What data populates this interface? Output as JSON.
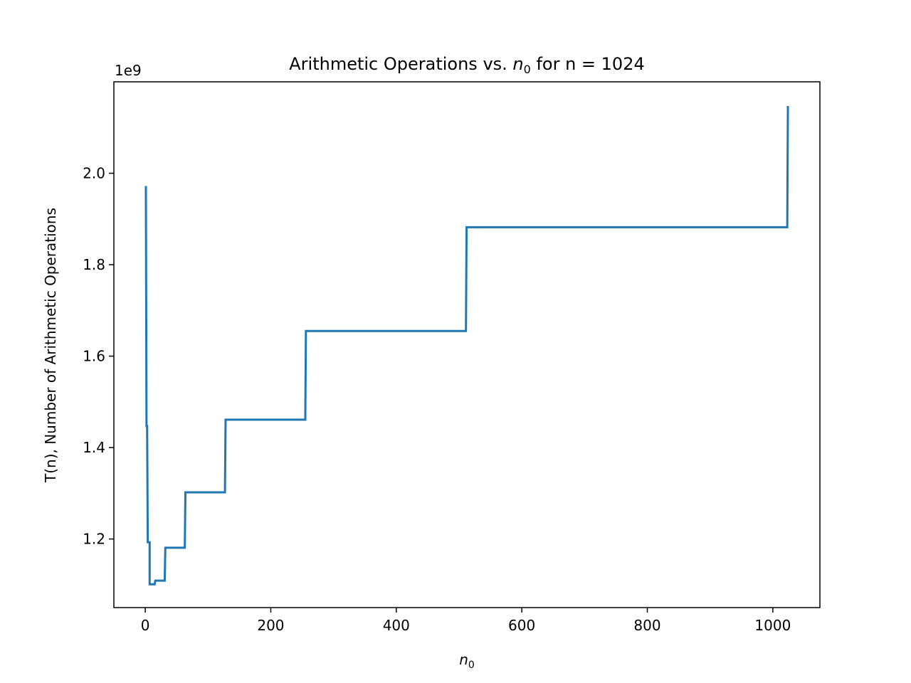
{
  "chart_data": {
    "type": "line",
    "title_main": "Arithmetic Operations vs. ",
    "title_var": "n",
    "title_sub": "0",
    "title_rest": " for n = 1024",
    "xlabel_var": "n",
    "xlabel_sub": "0",
    "ylabel": "T(n), Number of Arithmetic Operations",
    "y_offset_label": "1e9",
    "xlim": [
      -50,
      1075
    ],
    "ylim": [
      1.05,
      2.2
    ],
    "xticks": [
      0,
      200,
      400,
      600,
      800,
      1000
    ],
    "xtick_labels": [
      "0",
      "200",
      "400",
      "600",
      "800",
      "1000"
    ],
    "yticks": [
      1.2,
      1.4,
      1.6,
      1.8,
      2.0
    ],
    "ytick_labels": [
      "1.2",
      "1.4",
      "1.6",
      "1.8",
      "2.0"
    ],
    "line_color": "#1f77b4",
    "series": [
      {
        "x": [
          1,
          1,
          2,
          3,
          3,
          4,
          7,
          7,
          8,
          15,
          15,
          16,
          31,
          31,
          32,
          63,
          63,
          64,
          127,
          127,
          128,
          255,
          255,
          256,
          511,
          511,
          512,
          1023,
          1023,
          1024
        ],
        "y": [
          1.972,
          1.972,
          1.447,
          1.447,
          1.447,
          1.193,
          1.193,
          1.101,
          1.101,
          1.101,
          1.101,
          1.109,
          1.109,
          1.109,
          1.181,
          1.181,
          1.181,
          1.302,
          1.302,
          1.302,
          1.461,
          1.461,
          1.461,
          1.655,
          1.655,
          1.655,
          1.882,
          1.882,
          1.882,
          2.147
        ]
      }
    ]
  }
}
